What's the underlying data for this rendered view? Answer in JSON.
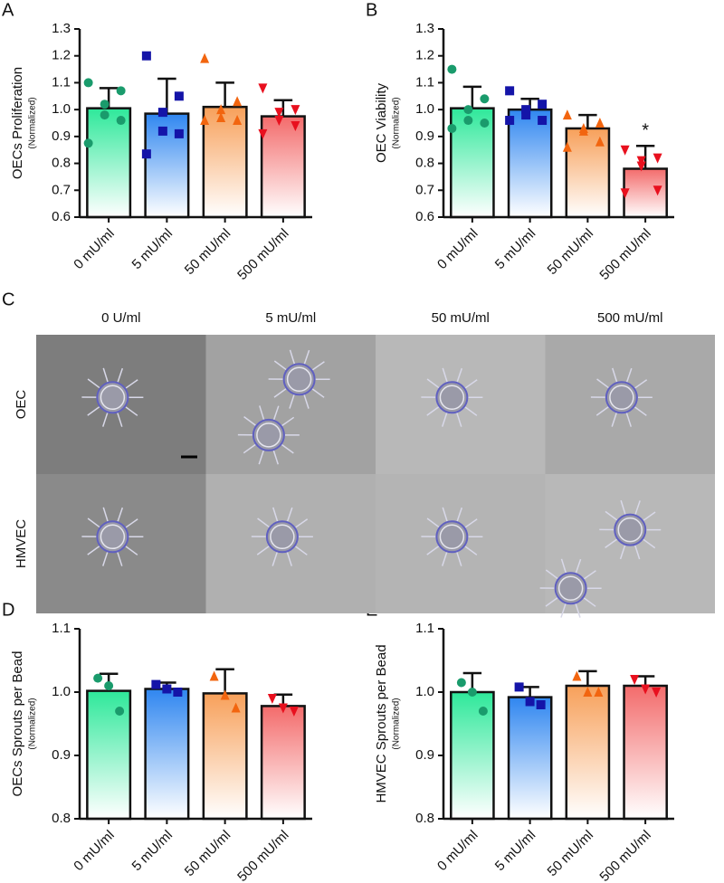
{
  "chart_data": [
    {
      "type": "bar",
      "panel": "A",
      "ylabel": "OECs Proliferation",
      "ylabel_sub": "(Normalized)",
      "categories": [
        "0 mU/ml",
        "5 mU/ml",
        "50 mU/ml",
        "500 mU/ml"
      ],
      "values": [
        1.005,
        0.985,
        1.01,
        0.975
      ],
      "errors": [
        0.075,
        0.13,
        0.09,
        0.06
      ],
      "points": [
        [
          1.1,
          1.07,
          1.02,
          0.98,
          0.96,
          0.875
        ],
        [
          1.2,
          1.05,
          0.99,
          0.92,
          0.91,
          0.835
        ],
        [
          1.19,
          1.03,
          1.0,
          0.97,
          0.96,
          0.96
        ],
        [
          1.08,
          1.0,
          0.99,
          0.96,
          0.94,
          0.91
        ]
      ],
      "colors": [
        "#2ee89a",
        "#2f86f0",
        "#f7a05a",
        "#f36b6b"
      ],
      "point_colors": [
        "#1a9b6c",
        "#1414a8",
        "#f2650f",
        "#e8101e"
      ],
      "markers": [
        "circle",
        "square",
        "triangle-up",
        "triangle-down"
      ],
      "ylim": [
        0.6,
        1.3
      ],
      "yticks": [
        0.6,
        0.7,
        0.8,
        0.9,
        {
          "value": 1,
          "label": "1.0"
        },
        1.1,
        1.2,
        1.3
      ]
    },
    {
      "type": "bar",
      "panel": "B",
      "ylabel": "OEC Viability",
      "ylabel_sub": "(Normalized)",
      "annotation": "*",
      "categories": [
        "0 mU/ml",
        "5 mU/ml",
        "50 mU/ml",
        "500 mU/ml"
      ],
      "values": [
        1.005,
        1.0,
        0.93,
        0.78
      ],
      "errors": [
        0.08,
        0.04,
        0.05,
        0.085
      ],
      "points": [
        [
          1.15,
          1.04,
          1.0,
          0.96,
          0.95,
          0.93
        ],
        [
          1.07,
          1.02,
          1.0,
          0.98,
          0.96,
          0.96
        ],
        [
          0.98,
          0.95,
          0.93,
          0.92,
          0.88,
          0.86
        ],
        [
          0.85,
          0.82,
          0.81,
          0.79,
          0.7,
          0.69
        ]
      ],
      "colors": [
        "#2ee89a",
        "#2f86f0",
        "#f7a05a",
        "#f36b6b"
      ],
      "point_colors": [
        "#1a9b6c",
        "#1414a8",
        "#f2650f",
        "#e8101e"
      ],
      "markers": [
        "circle",
        "square",
        "triangle-up",
        "triangle-down"
      ],
      "ylim": [
        0.6,
        1.3
      ],
      "yticks": [
        0.6,
        0.7,
        0.8,
        0.9,
        {
          "value": 1,
          "label": "1.0"
        },
        1.1,
        1.2,
        1.3
      ]
    },
    {
      "type": "bar",
      "panel": "D",
      "ylabel": "OECs Sprouts per Bead",
      "ylabel_sub": "(Normalized)",
      "categories": [
        "0 mU/ml",
        "5 mU/ml",
        "50 mU/ml",
        "500 mU/ml"
      ],
      "values": [
        1.002,
        1.005,
        0.998,
        0.978
      ],
      "errors": [
        0.027,
        0.01,
        0.038,
        0.018
      ],
      "points": [
        [
          1.022,
          1.01,
          0.97
        ],
        [
          1.012,
          1.005,
          1.0
        ],
        [
          1.025,
          0.995,
          0.975
        ],
        [
          0.99,
          0.975,
          0.97
        ]
      ],
      "colors": [
        "#2ee89a",
        "#2f86f0",
        "#f7a05a",
        "#f36b6b"
      ],
      "point_colors": [
        "#1a9b6c",
        "#1414a8",
        "#f2650f",
        "#e8101e"
      ],
      "markers": [
        "circle",
        "square",
        "triangle-up",
        "triangle-down"
      ],
      "ylim": [
        0.8,
        1.1
      ],
      "yticks": [
        0.8,
        0.9,
        {
          "value": 1,
          "label": "1.0"
        },
        1.1
      ]
    },
    {
      "type": "bar",
      "panel": "E",
      "ylabel": "HMVEC Sprouts per Bead",
      "ylabel_sub": "(Normalized)",
      "categories": [
        "0 mU/ml",
        "5 mU/ml",
        "50 mU/ml",
        "500 mU/ml"
      ],
      "values": [
        1.0,
        0.992,
        1.01,
        1.01
      ],
      "errors": [
        0.03,
        0.016,
        0.023,
        0.015
      ],
      "points": [
        [
          1.015,
          1.0,
          0.97
        ],
        [
          1.008,
          0.985,
          0.98
        ],
        [
          1.025,
          1.0,
          1.0
        ],
        [
          1.02,
          1.005,
          1.0
        ]
      ],
      "colors": [
        "#2ee89a",
        "#2f86f0",
        "#f7a05a",
        "#f36b6b"
      ],
      "point_colors": [
        "#1a9b6c",
        "#1414a8",
        "#f2650f",
        "#e8101e"
      ],
      "markers": [
        "circle",
        "square",
        "triangle-up",
        "triangle-down"
      ],
      "ylim": [
        0.8,
        1.1
      ],
      "yticks": [
        0.8,
        0.9,
        {
          "value": 1,
          "label": "1.0"
        },
        1.1
      ]
    }
  ],
  "micrographs": {
    "panel": "C",
    "columns": [
      "0 U/ml",
      "5 mU/ml",
      "50 mU/ml",
      "500 mU/ml"
    ],
    "rows": [
      "OEC",
      "HMVEC"
    ]
  }
}
